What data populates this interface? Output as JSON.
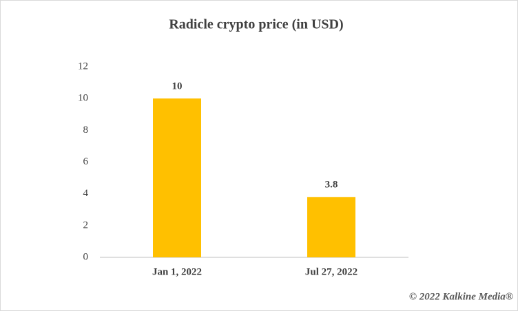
{
  "chart_data": {
    "type": "bar",
    "title": "Radicle crypto price (in USD)",
    "categories": [
      "Jan 1, 2022",
      "Jul 27, 2022"
    ],
    "values": [
      10,
      3.8
    ],
    "color": "#ffc000",
    "ylim": [
      0,
      12
    ],
    "yticks": [
      0,
      2,
      4,
      6,
      8,
      10,
      12
    ],
    "grid": false,
    "annotation": "© 2022 Kalkine Media®"
  }
}
